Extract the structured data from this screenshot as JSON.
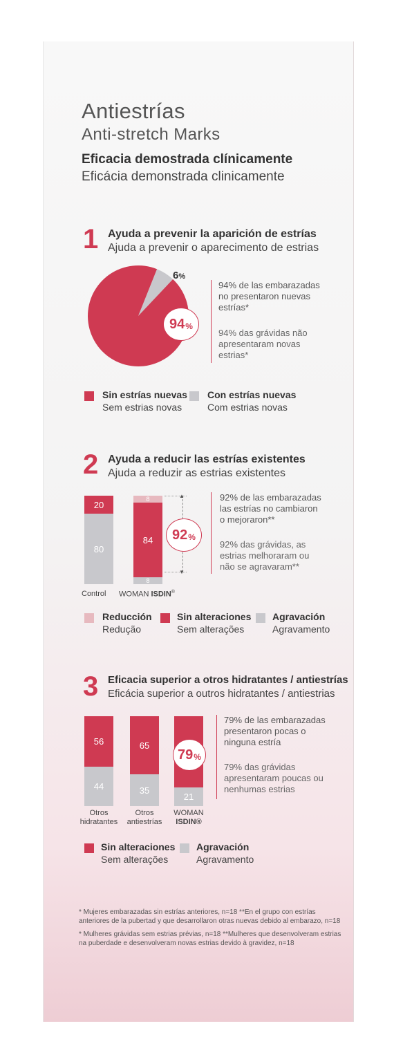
{
  "header": {
    "title": "Antiestrías",
    "subtitle": "Anti-stretch Marks",
    "efficacy_es": "Eficacia demostrada clínicamente",
    "efficacy_pt": "Eficácia demonstrada clinicamente"
  },
  "section1": {
    "number": "1",
    "heading_es": "Ayuda a prevenir la aparición de estrías",
    "heading_pt": "Ajuda a prevenir o aparecimento de estrias",
    "highlight": "94",
    "pct_sign": "%",
    "slice_small_label": "6",
    "note_es": [
      "94% de las embarazadas",
      "no presentaron nuevas",
      "estrías*"
    ],
    "note_pt": [
      "94% das grávidas não",
      "apresentaram novas",
      "estrias*"
    ],
    "legend": [
      {
        "es": "Sin estrías nuevas",
        "pt": "Sem estrias novas",
        "color": "#cf3a52"
      },
      {
        "es": "Con estrías nuevas",
        "pt": "Com estrias novas",
        "color": "#c8c8cc"
      }
    ]
  },
  "section2": {
    "number": "2",
    "heading_es": "Ayuda a reducir las estrías existentes",
    "heading_pt": "Ajuda a reduzir as estrias existentes",
    "highlight": "92",
    "pct_sign": "%",
    "bar_labels": [
      "Control",
      "WOMAN"
    ],
    "brand": "ISDIN",
    "reg": "®",
    "note_es": [
      "92% de las embarazadas",
      "las estrías no cambiaron",
      "o mejoraron**"
    ],
    "note_pt": [
      "92% das grávidas, as",
      "estrias melhoraram ou",
      "não se agravaram**"
    ],
    "legend": [
      {
        "es": "Reducción",
        "pt": "Redução",
        "color": "#e7b9bf"
      },
      {
        "es": "Sin alteraciones",
        "pt": "Sem alterações",
        "color": "#cf3a52"
      },
      {
        "es": "Agravación",
        "pt": "Agravamento",
        "color": "#c8c8cc"
      }
    ]
  },
  "section3": {
    "number": "3",
    "heading_es": "Eficacia superior a otros hidratantes / antiestrías",
    "heading_pt": "Eficácia superior a outros hidratantes / antiestrias",
    "highlight": "79",
    "pct_sign": "%",
    "bar_labels": [
      [
        "Otros",
        "hidratantes"
      ],
      [
        "Otros",
        "antiestrías"
      ],
      [
        "WOMAN",
        "ISDIN®"
      ]
    ],
    "note_es": [
      "79% de las embarazadas",
      "presentaron pocas o",
      "ninguna estría"
    ],
    "note_pt": [
      "79% das grávidas",
      "apresentaram poucas ou",
      "nenhumas estrias"
    ],
    "legend": [
      {
        "es": "Sin alteraciones",
        "pt": "Sem alterações",
        "color": "#cf3a52"
      },
      {
        "es": "Agravación",
        "pt": "Agravamento",
        "color": "#c8c8cc"
      }
    ]
  },
  "footnotes": {
    "es": [
      "* Mujeres embarazadas sin estrías anteriores, n=18 **En el grupo con estrías",
      "anteriores de la pubertad y que desarrollaron otras nuevas debido al embarazo, n=18"
    ],
    "pt": [
      "* Mulheres grávidas sem estrias prévias, n=18 **Mulheres que desenvolveram estrias",
      "na puberdade e desenvolveram novas estrias devido à gravidez, n=18"
    ]
  },
  "chart_data": [
    {
      "type": "pie",
      "categories": [
        "Sin estrías nuevas",
        "Con estrías nuevas"
      ],
      "values": [
        94,
        6
      ],
      "colors": [
        "#cf3a52",
        "#c8c8cc"
      ]
    },
    {
      "type": "bar",
      "stacked": true,
      "categories": [
        "Control",
        "WOMAN ISDIN®"
      ],
      "series": [
        {
          "name": "Agravación",
          "values": [
            80,
            8
          ],
          "color": "#c8c8cc"
        },
        {
          "name": "Sin alteraciones",
          "values": [
            20,
            84
          ],
          "color": "#cf3a52"
        },
        {
          "name": "Reducción",
          "values": [
            0,
            8
          ],
          "color": "#e7b9bf"
        }
      ]
    },
    {
      "type": "bar",
      "stacked": true,
      "categories": [
        "Otros hidratantes",
        "Otros antiestrías",
        "WOMAN ISDIN®"
      ],
      "series": [
        {
          "name": "Agravación",
          "values": [
            44,
            35,
            21
          ],
          "color": "#c8c8cc"
        },
        {
          "name": "Sin alteraciones",
          "values": [
            56,
            65,
            79
          ],
          "color": "#cf3a52"
        }
      ]
    }
  ]
}
